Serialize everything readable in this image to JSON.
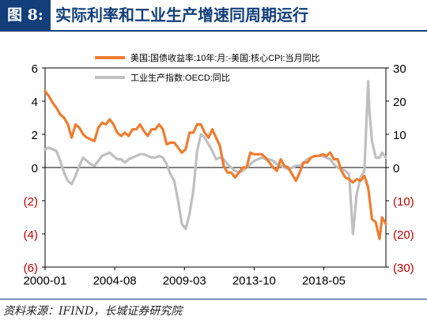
{
  "header": {
    "figure_label": "图 8:",
    "title": "实际利率和工业生产增速同周期运行"
  },
  "footer": {
    "source": "资料来源：IFIND，长城证券研究院"
  },
  "colors": {
    "series_orange": "#ed7d31",
    "series_gray": "#bfbfbf",
    "negative_label": "#c00000",
    "title_blue": "#123f7a"
  },
  "chart_data": {
    "type": "line",
    "x_range": [
      "2000-01",
      "2022-06"
    ],
    "x_ticks": [
      "2000-01",
      "2004-08",
      "2009-03",
      "2013-10",
      "2018-05"
    ],
    "y_left": {
      "ylim": [
        -6,
        6
      ],
      "ticks": [
        6,
        4,
        2,
        0,
        -2,
        -4,
        -6
      ],
      "tick_labels": [
        "6",
        "4",
        "2",
        "0",
        "(2)",
        "(4)",
        "(6)"
      ]
    },
    "y_right": {
      "ylim": [
        -30,
        30
      ],
      "ticks": [
        30,
        20,
        10,
        0,
        -10,
        -20,
        -30
      ],
      "tick_labels": [
        "30",
        "20",
        "10",
        "0",
        "(10)",
        "(20)",
        "(30)"
      ]
    },
    "legend_position": "top",
    "grid": false,
    "series": [
      {
        "name": "美国:国债收益率:10年:月:-美国:核心CPI:当月同比",
        "axis": "left",
        "color": "#ed7d31",
        "points": [
          [
            "2000-01",
            4.6
          ],
          [
            "2000-04",
            4.3
          ],
          [
            "2000-07",
            3.9
          ],
          [
            "2000-10",
            3.6
          ],
          [
            "2001-01",
            3.2
          ],
          [
            "2001-04",
            3.0
          ],
          [
            "2001-07",
            2.6
          ],
          [
            "2001-10",
            1.8
          ],
          [
            "2002-01",
            2.6
          ],
          [
            "2002-04",
            2.4
          ],
          [
            "2002-07",
            2.0
          ],
          [
            "2002-10",
            1.8
          ],
          [
            "2003-01",
            1.7
          ],
          [
            "2003-04",
            1.6
          ],
          [
            "2003-07",
            2.4
          ],
          [
            "2003-10",
            2.7
          ],
          [
            "2004-01",
            2.6
          ],
          [
            "2004-04",
            2.9
          ],
          [
            "2004-07",
            2.6
          ],
          [
            "2004-10",
            2.1
          ],
          [
            "2005-01",
            1.9
          ],
          [
            "2005-04",
            2.1
          ],
          [
            "2005-07",
            1.9
          ],
          [
            "2005-10",
            2.3
          ],
          [
            "2006-01",
            2.3
          ],
          [
            "2006-04",
            2.6
          ],
          [
            "2006-07",
            2.2
          ],
          [
            "2006-10",
            1.9
          ],
          [
            "2007-01",
            2.3
          ],
          [
            "2007-04",
            2.3
          ],
          [
            "2007-07",
            2.6
          ],
          [
            "2007-10",
            2.3
          ],
          [
            "2008-01",
            1.4
          ],
          [
            "2008-04",
            1.5
          ],
          [
            "2008-07",
            1.5
          ],
          [
            "2008-10",
            1.2
          ],
          [
            "2009-01",
            0.9
          ],
          [
            "2009-04",
            1.1
          ],
          [
            "2009-07",
            2.1
          ],
          [
            "2009-10",
            2.1
          ],
          [
            "2010-01",
            2.6
          ],
          [
            "2010-04",
            2.6
          ],
          [
            "2010-07",
            2.1
          ],
          [
            "2010-10",
            1.8
          ],
          [
            "2011-01",
            2.3
          ],
          [
            "2011-04",
            1.8
          ],
          [
            "2011-07",
            1.3
          ],
          [
            "2011-10",
            0.1
          ],
          [
            "2012-01",
            -0.3
          ],
          [
            "2012-04",
            -0.3
          ],
          [
            "2012-07",
            -0.6
          ],
          [
            "2012-10",
            -0.3
          ],
          [
            "2013-01",
            0.0
          ],
          [
            "2013-04",
            0.0
          ],
          [
            "2013-07",
            0.9
          ],
          [
            "2013-10",
            0.8
          ],
          [
            "2014-01",
            0.8
          ],
          [
            "2014-04",
            0.8
          ],
          [
            "2014-07",
            0.6
          ],
          [
            "2014-10",
            0.3
          ],
          [
            "2015-01",
            0.0
          ],
          [
            "2015-04",
            -0.2
          ],
          [
            "2015-07",
            0.5
          ],
          [
            "2015-10",
            0.1
          ],
          [
            "2016-01",
            0.0
          ],
          [
            "2016-04",
            -0.4
          ],
          [
            "2016-07",
            -0.8
          ],
          [
            "2016-10",
            -0.3
          ],
          [
            "2017-01",
            0.3
          ],
          [
            "2017-04",
            0.3
          ],
          [
            "2017-07",
            0.6
          ],
          [
            "2017-10",
            0.7
          ],
          [
            "2018-01",
            0.7
          ],
          [
            "2018-04",
            0.8
          ],
          [
            "2018-07",
            0.7
          ],
          [
            "2018-10",
            0.9
          ],
          [
            "2019-01",
            0.5
          ],
          [
            "2019-04",
            0.5
          ],
          [
            "2019-07",
            -0.2
          ],
          [
            "2019-10",
            -0.6
          ],
          [
            "2020-01",
            -0.7
          ],
          [
            "2020-04",
            -0.9
          ],
          [
            "2020-07",
            -0.7
          ],
          [
            "2020-10",
            -0.8
          ],
          [
            "2021-01",
            -0.5
          ],
          [
            "2021-04",
            -1.2
          ],
          [
            "2021-07",
            -3.1
          ],
          [
            "2021-10",
            -3.3
          ],
          [
            "2022-01",
            -4.3
          ],
          [
            "2022-03",
            -3.0
          ],
          [
            "2022-06",
            -3.4
          ]
        ]
      },
      {
        "name": "工业生产指数:OECD:同比",
        "axis": "right",
        "color": "#bfbfbf",
        "points": [
          [
            "2000-01",
            5.5
          ],
          [
            "2000-04",
            6.0
          ],
          [
            "2000-07",
            5.5
          ],
          [
            "2000-10",
            5.0
          ],
          [
            "2001-01",
            2.0
          ],
          [
            "2001-04",
            -1.5
          ],
          [
            "2001-07",
            -4.0
          ],
          [
            "2001-10",
            -5.0
          ],
          [
            "2002-01",
            -2.5
          ],
          [
            "2002-04",
            0.5
          ],
          [
            "2002-07",
            3.0
          ],
          [
            "2002-10",
            2.0
          ],
          [
            "2003-01",
            1.0
          ],
          [
            "2003-04",
            0.5
          ],
          [
            "2003-07",
            2.0
          ],
          [
            "2003-10",
            3.5
          ],
          [
            "2004-01",
            4.0
          ],
          [
            "2004-04",
            4.5
          ],
          [
            "2004-07",
            3.5
          ],
          [
            "2004-10",
            2.5
          ],
          [
            "2005-01",
            2.5
          ],
          [
            "2005-04",
            1.5
          ],
          [
            "2005-07",
            2.5
          ],
          [
            "2005-10",
            3.0
          ],
          [
            "2006-01",
            3.5
          ],
          [
            "2006-04",
            4.0
          ],
          [
            "2006-07",
            4.0
          ],
          [
            "2006-10",
            3.5
          ],
          [
            "2007-01",
            3.0
          ],
          [
            "2007-04",
            3.0
          ],
          [
            "2007-07",
            3.5
          ],
          [
            "2007-10",
            3.0
          ],
          [
            "2008-01",
            1.0
          ],
          [
            "2008-04",
            -2.0
          ],
          [
            "2008-07",
            -4.0
          ],
          [
            "2008-10",
            -10.0
          ],
          [
            "2009-01",
            -17.0
          ],
          [
            "2009-04",
            -18.5
          ],
          [
            "2009-07",
            -14.0
          ],
          [
            "2009-10",
            -7.0
          ],
          [
            "2010-01",
            5.0
          ],
          [
            "2010-04",
            10.0
          ],
          [
            "2010-07",
            9.0
          ],
          [
            "2010-10",
            7.0
          ],
          [
            "2011-01",
            5.0
          ],
          [
            "2011-04",
            2.5
          ],
          [
            "2011-07",
            3.0
          ],
          [
            "2011-10",
            2.5
          ],
          [
            "2012-01",
            1.0
          ],
          [
            "2012-04",
            0.0
          ],
          [
            "2012-07",
            -1.0
          ],
          [
            "2012-10",
            -1.5
          ],
          [
            "2013-01",
            -1.0
          ],
          [
            "2013-04",
            0.0
          ],
          [
            "2013-07",
            1.0
          ],
          [
            "2013-10",
            2.0
          ],
          [
            "2014-01",
            2.5
          ],
          [
            "2014-04",
            3.0
          ],
          [
            "2014-07",
            2.5
          ],
          [
            "2014-10",
            2.5
          ],
          [
            "2015-01",
            2.0
          ],
          [
            "2015-04",
            1.0
          ],
          [
            "2015-07",
            0.5
          ],
          [
            "2015-10",
            0.0
          ],
          [
            "2016-01",
            -0.5
          ],
          [
            "2016-04",
            0.0
          ],
          [
            "2016-07",
            0.5
          ],
          [
            "2016-10",
            0.5
          ],
          [
            "2017-01",
            1.5
          ],
          [
            "2017-04",
            2.5
          ],
          [
            "2017-07",
            3.0
          ],
          [
            "2017-10",
            3.5
          ],
          [
            "2018-01",
            3.5
          ],
          [
            "2018-04",
            3.5
          ],
          [
            "2018-07",
            3.0
          ],
          [
            "2018-10",
            2.5
          ],
          [
            "2019-01",
            1.0
          ],
          [
            "2019-04",
            0.0
          ],
          [
            "2019-07",
            -0.5
          ],
          [
            "2019-10",
            -1.0
          ],
          [
            "2020-01",
            -2.0
          ],
          [
            "2020-04",
            -20.0
          ],
          [
            "2020-07",
            -8.0
          ],
          [
            "2020-10",
            -3.0
          ],
          [
            "2021-01",
            -1.0
          ],
          [
            "2021-04",
            26.0
          ],
          [
            "2021-05",
            17.0
          ],
          [
            "2021-07",
            8.0
          ],
          [
            "2021-10",
            3.0
          ],
          [
            "2022-01",
            3.0
          ],
          [
            "2022-03",
            4.5
          ],
          [
            "2022-06",
            3.0
          ]
        ]
      }
    ]
  }
}
